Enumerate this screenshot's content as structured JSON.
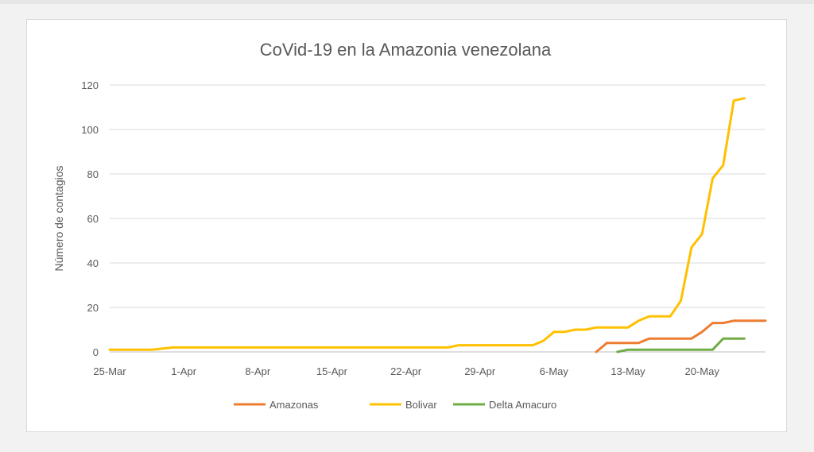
{
  "chart_data": {
    "type": "line",
    "title": "CoVid-19 en la Amazonia venezolana",
    "ylabel": "Número de contagios",
    "xlabel": "",
    "ylim": [
      0,
      120
    ],
    "yticks": [
      0,
      20,
      40,
      60,
      80,
      100,
      120
    ],
    "x_tick_labels": [
      "25-Mar",
      "1-Apr",
      "8-Apr",
      "15-Apr",
      "22-Apr",
      "29-Apr",
      "6-May",
      "13-May",
      "20-May"
    ],
    "x_start": "25-Mar",
    "x_end": "26-May",
    "grid": true,
    "legend_position": "bottom",
    "series": [
      {
        "name": "Amazonas",
        "color": "#ED7D31",
        "points": [
          [
            "10-May",
            0
          ],
          [
            "11-May",
            4
          ],
          [
            "12-May",
            4
          ],
          [
            "13-May",
            4
          ],
          [
            "14-May",
            4
          ],
          [
            "15-May",
            6
          ],
          [
            "16-May",
            6
          ],
          [
            "17-May",
            6
          ],
          [
            "18-May",
            6
          ],
          [
            "19-May",
            6
          ],
          [
            "20-May",
            9
          ],
          [
            "21-May",
            13
          ],
          [
            "22-May",
            13
          ],
          [
            "23-May",
            14
          ],
          [
            "24-May",
            14
          ],
          [
            "25-May",
            14
          ],
          [
            "26-May",
            14
          ]
        ]
      },
      {
        "name": "Bolivar",
        "color": "#FFC000",
        "points": [
          [
            "25-Mar",
            1
          ],
          [
            "29-Mar",
            1
          ],
          [
            "31-Mar",
            2
          ],
          [
            "26-Apr",
            2
          ],
          [
            "27-Apr",
            3
          ],
          [
            "4-May",
            3
          ],
          [
            "5-May",
            5
          ],
          [
            "6-May",
            9
          ],
          [
            "7-May",
            9
          ],
          [
            "8-May",
            10
          ],
          [
            "9-May",
            10
          ],
          [
            "10-May",
            11
          ],
          [
            "11-May",
            11
          ],
          [
            "12-May",
            11
          ],
          [
            "13-May",
            11
          ],
          [
            "14-May",
            14
          ],
          [
            "15-May",
            16
          ],
          [
            "16-May",
            16
          ],
          [
            "17-May",
            16
          ],
          [
            "18-May",
            23
          ],
          [
            "19-May",
            47
          ],
          [
            "20-May",
            53
          ],
          [
            "21-May",
            78
          ],
          [
            "22-May",
            84
          ],
          [
            "23-May",
            113
          ],
          [
            "24-May",
            114
          ]
        ]
      },
      {
        "name": "Delta Amacuro",
        "color": "#70AD47",
        "points": [
          [
            "12-May",
            0
          ],
          [
            "13-May",
            1
          ],
          [
            "14-May",
            1
          ],
          [
            "15-May",
            1
          ],
          [
            "16-May",
            1
          ],
          [
            "17-May",
            1
          ],
          [
            "18-May",
            1
          ],
          [
            "19-May",
            1
          ],
          [
            "20-May",
            1
          ],
          [
            "21-May",
            1
          ],
          [
            "22-May",
            6
          ],
          [
            "23-May",
            6
          ],
          [
            "24-May",
            6
          ]
        ]
      }
    ]
  }
}
